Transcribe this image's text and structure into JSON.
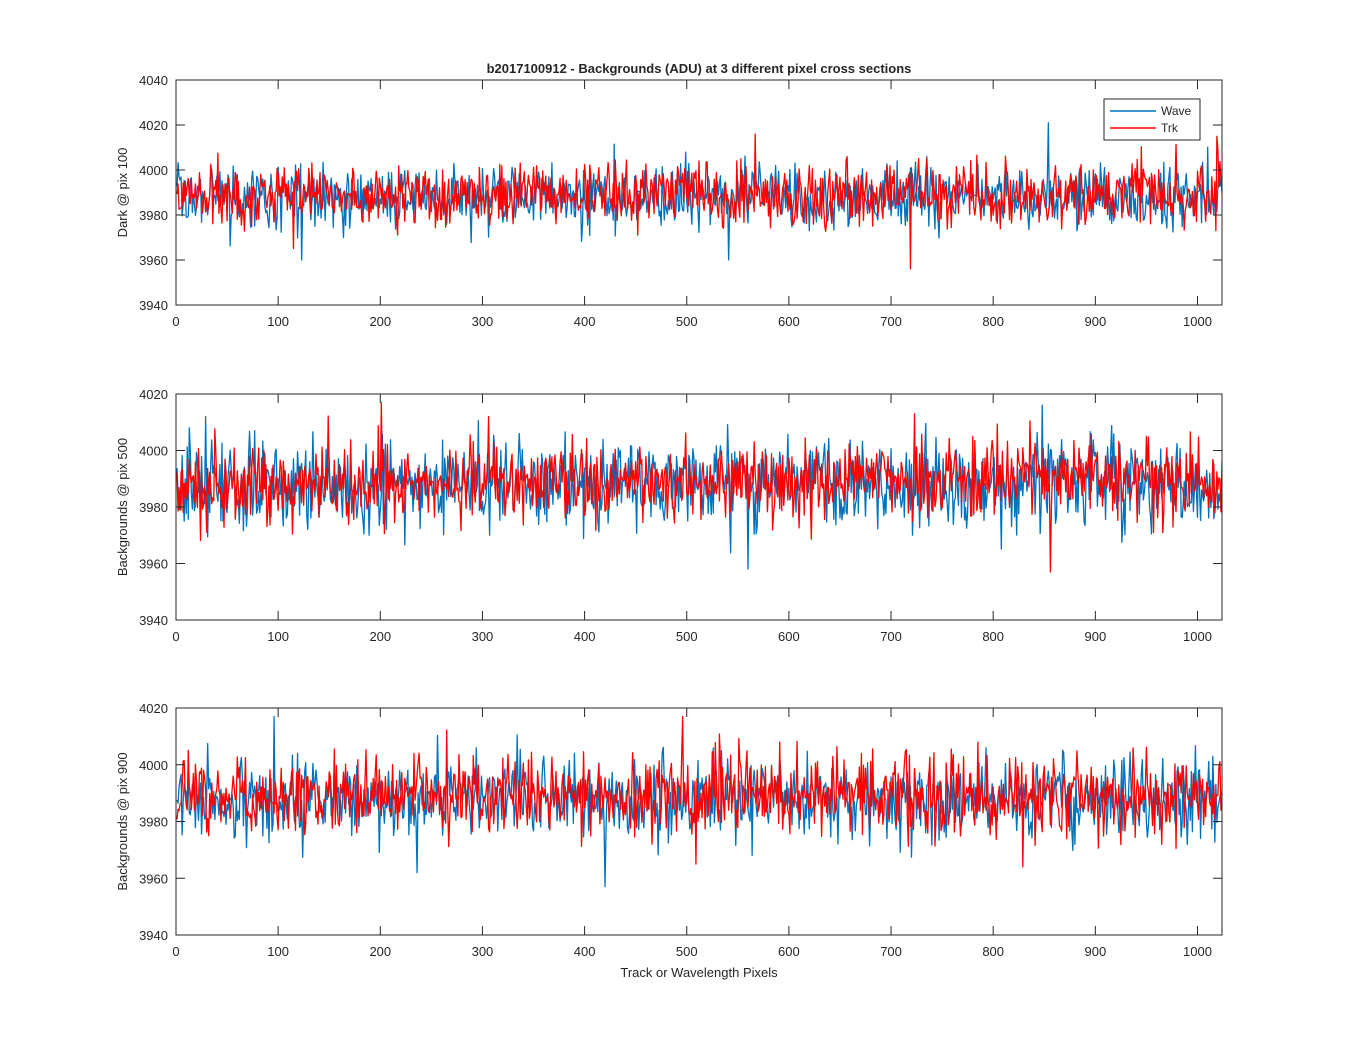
{
  "chart_data": [
    {
      "type": "line",
      "title": "b2017100912 - Backgrounds (ADU) at 3 different pixel cross sections",
      "xlabel": "",
      "ylabel": "Dark @ pix 100",
      "xlim": [
        0,
        1024
      ],
      "ylim": [
        3940,
        4040
      ],
      "xticks": [
        "0",
        "100",
        "200",
        "300",
        "400",
        "500",
        "600",
        "700",
        "800",
        "900",
        "1000"
      ],
      "yticks": [
        "3940",
        "3960",
        "3980",
        "4000",
        "4020",
        "4040"
      ],
      "grid": false,
      "legend": {
        "placement": "top-right",
        "entries": [
          "Wave",
          "Trk"
        ]
      },
      "n_points": 1024,
      "series": [
        {
          "name": "Wave",
          "color": "#0072BD",
          "mean": 3988,
          "std": 7,
          "min": 3960,
          "max": 4021,
          "extremes": [
            [
              122,
              3960
            ],
            [
              540,
              3960
            ],
            [
              853,
              4021
            ]
          ]
        },
        {
          "name": "Trk",
          "color": "#FF0000",
          "mean": 3989,
          "std": 7,
          "min": 3956,
          "max": 4016,
          "extremes": [
            [
              718,
              3956
            ],
            [
              566,
              4016
            ],
            [
              1018,
              4015
            ]
          ]
        }
      ]
    },
    {
      "type": "line",
      "title": "",
      "xlabel": "",
      "ylabel": "Backgrounds @ pix 500",
      "xlim": [
        0,
        1024
      ],
      "ylim": [
        3940,
        4020
      ],
      "xticks": [
        "0",
        "100",
        "200",
        "300",
        "400",
        "500",
        "600",
        "700",
        "800",
        "900",
        "1000"
      ],
      "yticks": [
        "3940",
        "3960",
        "3980",
        "4000",
        "4020"
      ],
      "grid": false,
      "n_points": 1024,
      "series": [
        {
          "name": "Wave",
          "color": "#0072BD",
          "mean": 3988,
          "std": 8,
          "min": 3958,
          "max": 4016,
          "extremes": [
            [
              559,
              3958
            ],
            [
              847,
              4016
            ],
            [
              28,
              4012
            ]
          ]
        },
        {
          "name": "Trk",
          "color": "#FF0000",
          "mean": 3989,
          "std": 7,
          "min": 3957,
          "max": 4017,
          "extremes": [
            [
              200,
              4017
            ],
            [
              855,
              3957
            ],
            [
              722,
              4013
            ]
          ]
        }
      ]
    },
    {
      "type": "line",
      "title": "",
      "xlabel": "Track or Wavelength Pixels",
      "ylabel": "Backgrounds @ pix 900",
      "xlim": [
        0,
        1024
      ],
      "ylim": [
        3940,
        4020
      ],
      "xticks": [
        "0",
        "100",
        "200",
        "300",
        "400",
        "500",
        "600",
        "700",
        "800",
        "900",
        "1000"
      ],
      "yticks": [
        "3940",
        "3960",
        "3980",
        "4000",
        "4020"
      ],
      "grid": false,
      "n_points": 1024,
      "series": [
        {
          "name": "Wave",
          "color": "#0072BD",
          "mean": 3988,
          "std": 7,
          "min": 3957,
          "max": 4017,
          "extremes": [
            [
              95,
              4017
            ],
            [
              419,
              3957
            ],
            [
              235,
              3962
            ]
          ]
        },
        {
          "name": "Trk",
          "color": "#FF0000",
          "mean": 3989,
          "std": 7,
          "min": 3965,
          "max": 4017,
          "extremes": [
            [
              495,
              4017
            ],
            [
              508,
              3965
            ],
            [
              828,
              3964
            ]
          ]
        }
      ]
    }
  ]
}
